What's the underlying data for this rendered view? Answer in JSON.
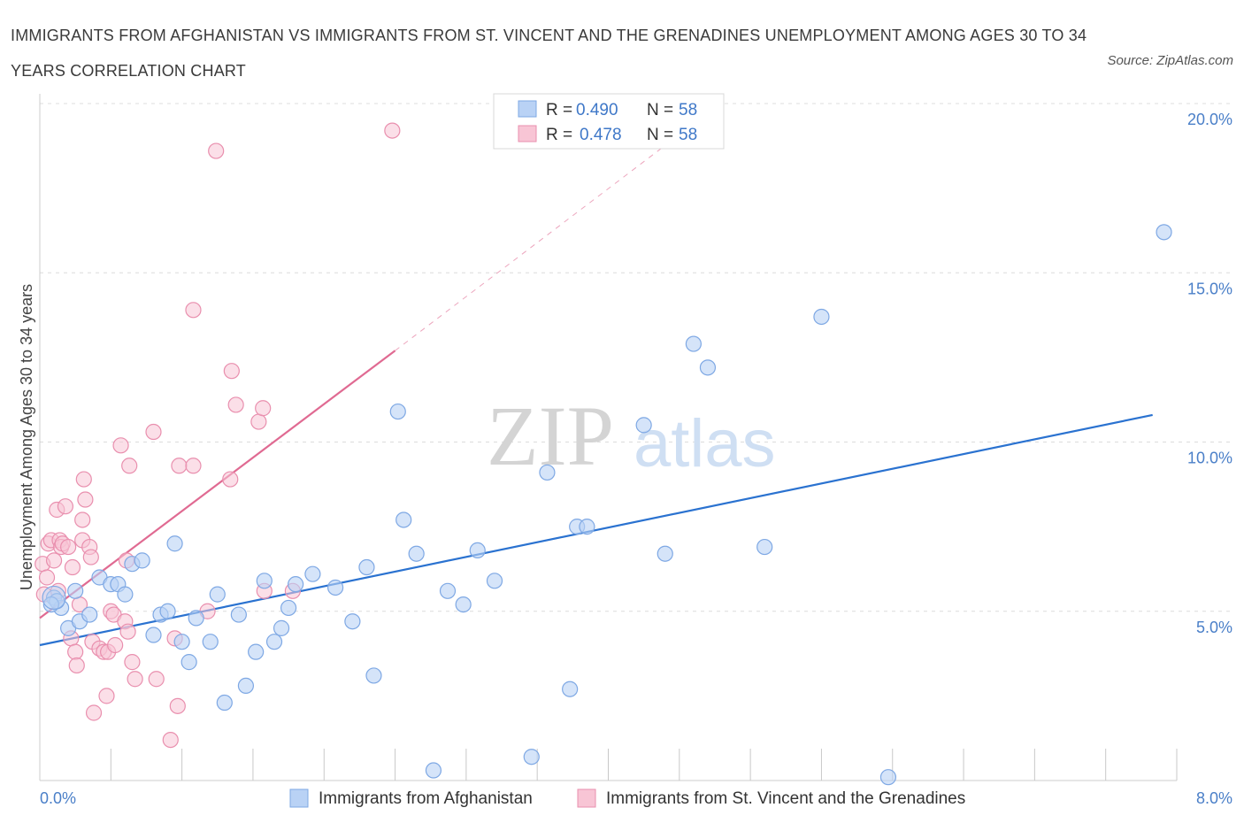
{
  "title": "IMMIGRANTS FROM AFGHANISTAN VS IMMIGRANTS FROM ST. VINCENT AND THE GRENADINES UNEMPLOYMENT AMONG AGES 30 TO 34 YEARS CORRELATION CHART",
  "source": "Source: ZipAtlas.com",
  "watermark": {
    "zip": "ZIP",
    "atlas": "atlas"
  },
  "colors": {
    "blue_fill": "#b9d2f5",
    "blue_stroke": "#7ea8e4",
    "blue_line": "#2a72d0",
    "pink_fill": "#f8c5d5",
    "pink_stroke": "#e98fae",
    "pink_line": "#e06a92",
    "grid": "#dcdcdc",
    "tick_text": "#4a7fc8"
  },
  "stats": [
    {
      "r_label": "R = ",
      "r": "0.490",
      "n_label": "N = ",
      "n": "58"
    },
    {
      "r_label": "R = ",
      "r": "0.478",
      "n_label": "N = ",
      "n": "58"
    }
  ],
  "chart_data": {
    "type": "scatter",
    "title": "IMMIGRANTS FROM AFGHANISTAN VS IMMIGRANTS FROM ST. VINCENT AND THE GRENADINES UNEMPLOYMENT AMONG AGES 30 TO 34 YEARS CORRELATION CHART",
    "xlabel": "",
    "ylabel": "Unemployment Among Ages 30 to 34 years",
    "xlim": [
      0,
      8
    ],
    "ylim": [
      0,
      20
    ],
    "x_tick_labels": [
      "0.0%",
      "8.0%"
    ],
    "y_ticks": [
      5,
      10,
      15,
      20
    ],
    "y_tick_labels": [
      "5.0%",
      "10.0%",
      "15.0%",
      "20.0%"
    ],
    "grid": true,
    "legend_position": "bottom",
    "series": [
      {
        "name": "Immigrants from Afghanistan",
        "color": "#b9d2f5",
        "trend": {
          "x0": 0,
          "y0": 4.0,
          "x1": 7.83,
          "y1": 10.8
        },
        "points": [
          [
            0.1,
            5.4
          ],
          [
            0.15,
            5.1
          ],
          [
            0.12,
            5.3
          ],
          [
            0.2,
            4.5
          ],
          [
            0.25,
            5.6
          ],
          [
            0.28,
            4.7
          ],
          [
            0.35,
            4.9
          ],
          [
            0.42,
            6.0
          ],
          [
            0.5,
            5.8
          ],
          [
            0.55,
            5.8
          ],
          [
            0.6,
            5.5
          ],
          [
            0.65,
            6.4
          ],
          [
            0.72,
            6.5
          ],
          [
            0.8,
            4.3
          ],
          [
            0.85,
            4.9
          ],
          [
            0.9,
            5.0
          ],
          [
            0.95,
            7.0
          ],
          [
            1.0,
            4.1
          ],
          [
            1.05,
            3.5
          ],
          [
            1.1,
            4.8
          ],
          [
            1.2,
            4.1
          ],
          [
            1.25,
            5.5
          ],
          [
            1.3,
            2.3
          ],
          [
            1.4,
            4.9
          ],
          [
            1.45,
            2.8
          ],
          [
            1.52,
            3.8
          ],
          [
            1.58,
            5.9
          ],
          [
            1.65,
            4.1
          ],
          [
            1.7,
            4.5
          ],
          [
            1.75,
            5.1
          ],
          [
            1.8,
            5.8
          ],
          [
            1.92,
            6.1
          ],
          [
            2.08,
            5.7
          ],
          [
            2.2,
            4.7
          ],
          [
            2.3,
            6.3
          ],
          [
            2.35,
            3.1
          ],
          [
            2.52,
            10.9
          ],
          [
            2.56,
            7.7
          ],
          [
            2.65,
            6.7
          ],
          [
            2.77,
            0.3
          ],
          [
            2.87,
            5.6
          ],
          [
            2.98,
            5.2
          ],
          [
            3.08,
            6.8
          ],
          [
            3.2,
            5.9
          ],
          [
            3.46,
            0.7
          ],
          [
            3.57,
            9.1
          ],
          [
            3.73,
            2.7
          ],
          [
            3.78,
            7.5
          ],
          [
            3.85,
            7.5
          ],
          [
            4.25,
            10.5
          ],
          [
            4.4,
            6.7
          ],
          [
            4.6,
            12.9
          ],
          [
            4.7,
            12.2
          ],
          [
            5.1,
            6.9
          ],
          [
            5.5,
            13.7
          ],
          [
            5.97,
            0.1
          ],
          [
            7.91,
            16.2
          ],
          [
            0.08,
            5.2
          ]
        ]
      },
      {
        "name": "Immigrants from St. Vincent and the Grenadines",
        "color": "#f8c5d5",
        "trend": {
          "x0": 0,
          "y0": 4.8,
          "x1": 2.5,
          "y1": 12.7
        },
        "trend_dashed_to": {
          "x": 4.6,
          "y": 19.4
        },
        "points": [
          [
            0.02,
            6.4
          ],
          [
            0.03,
            5.5
          ],
          [
            0.05,
            6.0
          ],
          [
            0.06,
            7.0
          ],
          [
            0.08,
            7.1
          ],
          [
            0.1,
            6.5
          ],
          [
            0.12,
            8.0
          ],
          [
            0.13,
            5.6
          ],
          [
            0.14,
            7.1
          ],
          [
            0.15,
            6.9
          ],
          [
            0.16,
            7.0
          ],
          [
            0.18,
            8.1
          ],
          [
            0.2,
            6.9
          ],
          [
            0.22,
            4.2
          ],
          [
            0.23,
            6.3
          ],
          [
            0.25,
            3.8
          ],
          [
            0.26,
            3.4
          ],
          [
            0.28,
            5.2
          ],
          [
            0.3,
            7.1
          ],
          [
            0.3,
            7.7
          ],
          [
            0.31,
            8.9
          ],
          [
            0.32,
            8.3
          ],
          [
            0.35,
            6.9
          ],
          [
            0.36,
            6.6
          ],
          [
            0.37,
            4.1
          ],
          [
            0.38,
            2.0
          ],
          [
            0.42,
            3.9
          ],
          [
            0.45,
            3.8
          ],
          [
            0.47,
            2.5
          ],
          [
            0.48,
            3.8
          ],
          [
            0.5,
            5.0
          ],
          [
            0.52,
            4.9
          ],
          [
            0.53,
            4.0
          ],
          [
            0.57,
            9.9
          ],
          [
            0.6,
            4.7
          ],
          [
            0.61,
            6.5
          ],
          [
            0.62,
            4.4
          ],
          [
            0.63,
            9.3
          ],
          [
            0.65,
            3.5
          ],
          [
            0.67,
            3.0
          ],
          [
            0.8,
            10.3
          ],
          [
            0.82,
            3.0
          ],
          [
            0.92,
            1.2
          ],
          [
            0.95,
            4.2
          ],
          [
            0.97,
            2.2
          ],
          [
            0.98,
            9.3
          ],
          [
            1.08,
            9.3
          ],
          [
            1.08,
            13.9
          ],
          [
            1.18,
            5.0
          ],
          [
            1.24,
            18.6
          ],
          [
            1.34,
            8.9
          ],
          [
            1.35,
            12.1
          ],
          [
            1.38,
            11.1
          ],
          [
            1.54,
            10.6
          ],
          [
            1.57,
            11.0
          ],
          [
            1.58,
            5.6
          ],
          [
            1.78,
            5.6
          ],
          [
            2.48,
            19.2
          ]
        ]
      }
    ]
  }
}
